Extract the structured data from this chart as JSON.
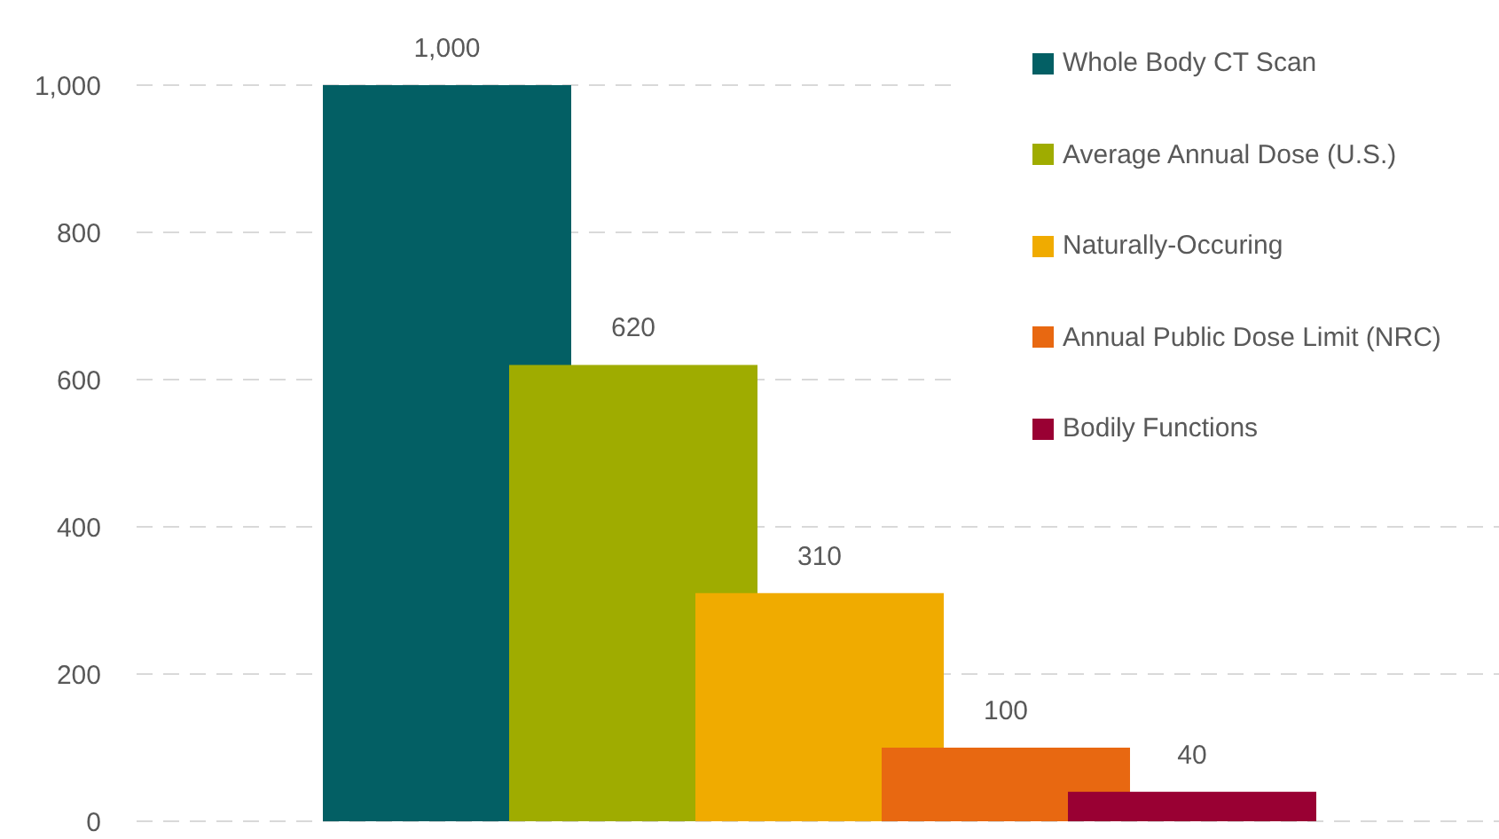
{
  "chart_data": {
    "type": "bar",
    "categories": [
      null
    ],
    "series": [
      {
        "name": "Whole Body CT Scan",
        "color": "#035f64",
        "values": [
          1000
        ],
        "value_labels": [
          "1,000"
        ]
      },
      {
        "name": "Average Annual Dose (U.S.)",
        "color": "#9fac00",
        "values": [
          620
        ],
        "value_labels": [
          "620"
        ]
      },
      {
        "name": "Naturally-Occuring",
        "color": "#f0ab00",
        "values": [
          310
        ],
        "value_labels": [
          "310"
        ]
      },
      {
        "name": "Annual Public Dose Limit (NRC)",
        "color": "#e86811",
        "values": [
          100
        ],
        "value_labels": [
          "100"
        ]
      },
      {
        "name": "Bodily Functions",
        "color": "#990033",
        "values": [
          40
        ],
        "value_labels": [
          "40"
        ]
      }
    ],
    "ylim": [
      0,
      1000
    ],
    "yticks": [
      0,
      200,
      400,
      600,
      {
        "value": 800,
        "label": "800"
      },
      {
        "value": 1000,
        "label": "1,000"
      }
    ],
    "grid": "y",
    "legend": "top right"
  }
}
